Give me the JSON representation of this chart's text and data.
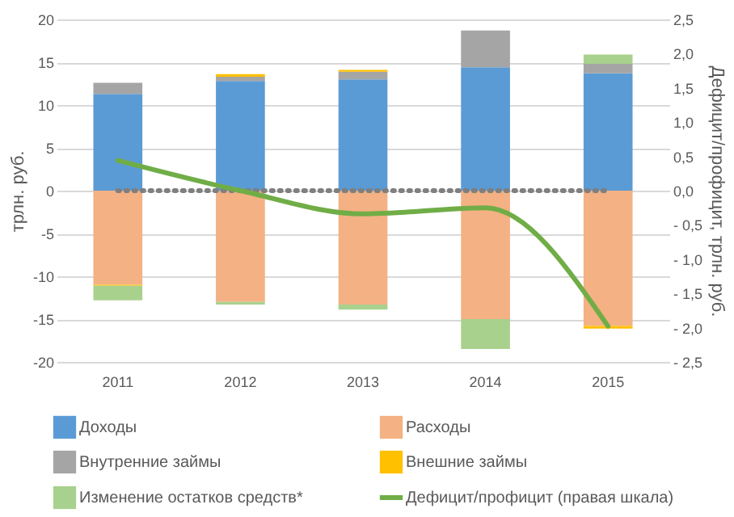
{
  "chart_data": {
    "type": "bar",
    "stacked": true,
    "categories": [
      "2011",
      "2012",
      "2013",
      "2014",
      "2015"
    ],
    "ylabel": "трлн. руб.",
    "y2label": "Дефицит/профицит, трлн. руб.",
    "ylim": [
      -20,
      20
    ],
    "yticks": [
      -20,
      -15,
      -10,
      -5,
      0,
      5,
      10,
      15,
      20
    ],
    "y2lim": [
      -2.5,
      2.5
    ],
    "y2ticks": [
      {
        "value": -2.5,
        "label": "- 2,5"
      },
      {
        "value": -2,
        "label": "- 2,0"
      },
      {
        "value": -1.5,
        "label": "- 1,5"
      },
      {
        "value": -1,
        "label": "- 1,0"
      },
      {
        "value": -0.5,
        "label": "- 0,5"
      },
      {
        "value": 0,
        "label": "0,0"
      },
      {
        "value": 0.5,
        "label": "0,5"
      },
      {
        "value": 1,
        "label": "1,0"
      },
      {
        "value": 1.5,
        "label": "1,5"
      },
      {
        "value": 2,
        "label": "2,0"
      },
      {
        "value": 2.5,
        "label": "2,5"
      }
    ],
    "series": [
      {
        "name": "Доходы",
        "color": "#5b9bd5",
        "values": [
          11.3,
          12.8,
          13.0,
          14.4,
          13.7
        ]
      },
      {
        "name": "Расходы",
        "color": "#f4b183",
        "values": [
          -11.0,
          -13.0,
          -13.3,
          -15.0,
          -15.8
        ]
      },
      {
        "name": "Внутренние займы",
        "color": "#a5a5a5",
        "values": [
          1.3,
          0.5,
          0.9,
          4.3,
          1.1
        ]
      },
      {
        "name": "Внешние займы",
        "color": "#ffc000",
        "values": [
          -0.1,
          0.3,
          0.2,
          null,
          -0.3
        ]
      },
      {
        "name": "Изменение остатков средств*",
        "color": "#a9d18e",
        "values": [
          -1.7,
          -0.3,
          -0.6,
          -3.5,
          1.1
        ]
      },
      {
        "name": "Дефицит/профицит (правая шкала)",
        "type": "line",
        "axis": "y2",
        "color": "#70ad47",
        "values": [
          0.44,
          0.0,
          -0.34,
          -0.25,
          -1.98
        ]
      }
    ],
    "ref_lines": [
      {
        "axis": "y",
        "value": 0,
        "color": "#7f7f7f",
        "line_style": "dotted"
      }
    ],
    "grid": "y",
    "legend": "bottom"
  }
}
